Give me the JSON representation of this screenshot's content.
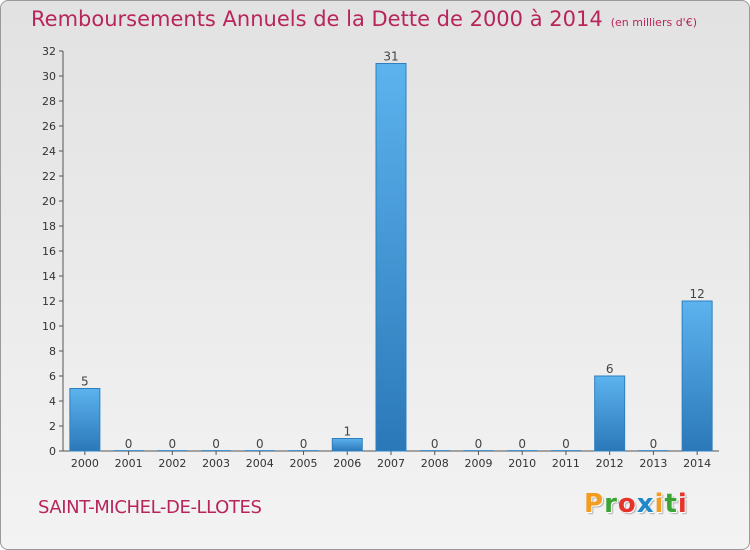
{
  "chart_data": {
    "type": "bar",
    "title": "Remboursements Annuels de la Dette de 2000 à 2014",
    "unit_note": "(en milliers d'€)",
    "xlabel": "",
    "ylabel": "",
    "categories": [
      "2000",
      "2001",
      "2002",
      "2003",
      "2004",
      "2005",
      "2006",
      "2007",
      "2008",
      "2009",
      "2010",
      "2011",
      "2012",
      "2013",
      "2014"
    ],
    "values": [
      5,
      0,
      0,
      0,
      0,
      0,
      1,
      31,
      0,
      0,
      0,
      0,
      6,
      0,
      12
    ],
    "ylim": [
      0,
      32
    ],
    "yticks": [
      0,
      2,
      4,
      6,
      8,
      10,
      12,
      14,
      16,
      18,
      20,
      22,
      24,
      26,
      28,
      30,
      32
    ],
    "grid": false,
    "bar_color": "#3a8fd4"
  },
  "footer": {
    "commune": "SAINT-MICHEL-DE-LLOTES",
    "logo_letters": [
      "P",
      "r",
      "o",
      "x",
      "i",
      "t",
      "i"
    ],
    "logo_colors": [
      "#f39c1f",
      "#3aa535",
      "#e6332a",
      "#1e88c8",
      "#f39c1f",
      "#3aa535",
      "#e6332a"
    ]
  }
}
